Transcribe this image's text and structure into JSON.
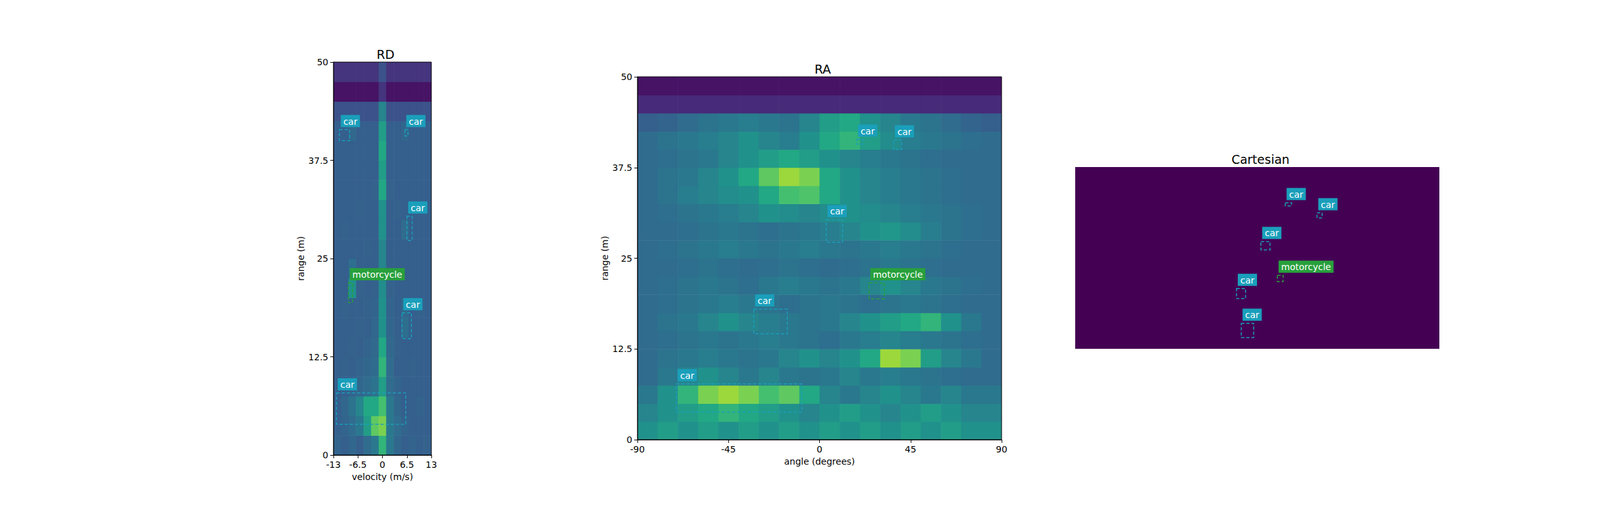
{
  "chart_data": [
    {
      "type": "heatmap",
      "title": "RD",
      "xlabel": "velocity (m/s)",
      "ylabel": "range (m)",
      "xlim": [
        -13,
        13
      ],
      "xticks": [
        -13,
        -6.5,
        0,
        6.5,
        13
      ],
      "ylim": [
        0,
        50
      ],
      "yticks": [
        0,
        12.5,
        25,
        37.5,
        50
      ],
      "value_range": [
        0,
        1
      ],
      "cell_x": [
        -12,
        -10,
        -8,
        -6,
        -4,
        -2,
        0,
        2,
        4,
        6,
        8,
        10,
        12
      ],
      "cell_y": [
        1.25,
        3.75,
        6.25,
        8.75,
        11.25,
        13.75,
        16.25,
        18.75,
        21.25,
        23.75,
        26.25,
        28.75,
        31.25,
        33.75,
        36.25,
        38.75,
        41.25,
        43.75,
        46.25,
        48.75
      ],
      "cells": [
        [
          0.32,
          0.3,
          0.33,
          0.3,
          0.35,
          0.4,
          0.65,
          0.4,
          0.33,
          0.3,
          0.32,
          0.3,
          0.31
        ],
        [
          0.3,
          0.32,
          0.35,
          0.4,
          0.55,
          0.75,
          0.8,
          0.4,
          0.35,
          0.32,
          0.3,
          0.3,
          0.3
        ],
        [
          0.3,
          0.33,
          0.38,
          0.45,
          0.6,
          0.6,
          0.7,
          0.4,
          0.33,
          0.3,
          0.3,
          0.32,
          0.3
        ],
        [
          0.3,
          0.3,
          0.32,
          0.33,
          0.35,
          0.38,
          0.55,
          0.35,
          0.32,
          0.3,
          0.3,
          0.3,
          0.3
        ],
        [
          0.3,
          0.31,
          0.3,
          0.32,
          0.33,
          0.35,
          0.65,
          0.35,
          0.3,
          0.3,
          0.31,
          0.3,
          0.3
        ],
        [
          0.3,
          0.3,
          0.31,
          0.3,
          0.32,
          0.34,
          0.6,
          0.34,
          0.31,
          0.3,
          0.3,
          0.3,
          0.3
        ],
        [
          0.3,
          0.3,
          0.3,
          0.31,
          0.3,
          0.33,
          0.5,
          0.33,
          0.3,
          0.36,
          0.3,
          0.3,
          0.3
        ],
        [
          0.3,
          0.31,
          0.3,
          0.3,
          0.31,
          0.32,
          0.5,
          0.32,
          0.3,
          0.34,
          0.3,
          0.31,
          0.3
        ],
        [
          0.3,
          0.3,
          0.5,
          0.31,
          0.3,
          0.31,
          0.48,
          0.31,
          0.3,
          0.3,
          0.3,
          0.3,
          0.3
        ],
        [
          0.3,
          0.3,
          0.36,
          0.3,
          0.3,
          0.3,
          0.45,
          0.3,
          0.3,
          0.3,
          0.3,
          0.3,
          0.3
        ],
        [
          0.3,
          0.3,
          0.3,
          0.3,
          0.31,
          0.3,
          0.45,
          0.3,
          0.3,
          0.3,
          0.3,
          0.3,
          0.3
        ],
        [
          0.3,
          0.31,
          0.3,
          0.3,
          0.3,
          0.3,
          0.5,
          0.3,
          0.3,
          0.35,
          0.3,
          0.3,
          0.3
        ],
        [
          0.3,
          0.3,
          0.3,
          0.31,
          0.3,
          0.3,
          0.5,
          0.3,
          0.31,
          0.3,
          0.3,
          0.3,
          0.3
        ],
        [
          0.3,
          0.3,
          0.3,
          0.3,
          0.3,
          0.31,
          0.6,
          0.31,
          0.3,
          0.3,
          0.3,
          0.3,
          0.3
        ],
        [
          0.3,
          0.3,
          0.3,
          0.3,
          0.3,
          0.3,
          0.55,
          0.3,
          0.3,
          0.3,
          0.3,
          0.3,
          0.3
        ],
        [
          0.3,
          0.3,
          0.3,
          0.3,
          0.3,
          0.3,
          0.6,
          0.3,
          0.3,
          0.3,
          0.3,
          0.3,
          0.3
        ],
        [
          0.3,
          0.3,
          0.34,
          0.3,
          0.3,
          0.3,
          0.55,
          0.3,
          0.3,
          0.33,
          0.3,
          0.3,
          0.3
        ],
        [
          0.25,
          0.25,
          0.25,
          0.25,
          0.25,
          0.25,
          0.45,
          0.25,
          0.25,
          0.25,
          0.25,
          0.25,
          0.25
        ],
        [
          0.05,
          0.05,
          0.05,
          0.05,
          0.05,
          0.05,
          0.15,
          0.05,
          0.05,
          0.05,
          0.05,
          0.05,
          0.05
        ],
        [
          0.15,
          0.15,
          0.15,
          0.15,
          0.15,
          0.15,
          0.25,
          0.15,
          0.15,
          0.15,
          0.15,
          0.15,
          0.15
        ]
      ],
      "boxes": [
        {
          "label": "car",
          "x": [
            -11.4,
            -8.7
          ],
          "y": [
            40.0,
            41.4
          ],
          "color": "#1a9fbb"
        },
        {
          "label": "car",
          "x": [
            6.0,
            6.8
          ],
          "y": [
            40.6,
            41.4
          ],
          "color": "#1a9fbb"
        },
        {
          "label": "car",
          "x": [
            6.5,
            7.9
          ],
          "y": [
            27.3,
            30.4
          ],
          "color": "#1a9fbb"
        },
        {
          "label": "motorcycle",
          "x": [
            -9.0,
            -7.9
          ],
          "y": [
            19.4,
            21.9
          ],
          "color": "#28a03c"
        },
        {
          "label": "car",
          "x": [
            5.2,
            7.7
          ],
          "y": [
            14.8,
            18.1
          ],
          "color": "#1a9fbb"
        },
        {
          "label": "car",
          "x": [
            -12.2,
            6.2
          ],
          "y": [
            3.9,
            7.9
          ],
          "color": "#1a9fbb"
        }
      ]
    },
    {
      "type": "heatmap",
      "title": "RA",
      "xlabel": "angle (degrees)",
      "ylabel": "range (m)",
      "xlim": [
        -90,
        90
      ],
      "xticks": [
        -90,
        -45,
        0,
        45,
        90
      ],
      "ylim": [
        0,
        50
      ],
      "yticks": [
        0,
        12.5,
        25,
        37.5,
        50
      ],
      "value_range": [
        0,
        1
      ],
      "cell_x": [
        -85,
        -75,
        -65,
        -55,
        -45,
        -35,
        -25,
        -15,
        -5,
        5,
        15,
        25,
        35,
        45,
        55,
        65,
        75,
        85
      ],
      "cell_y": [
        1.25,
        3.75,
        6.25,
        8.75,
        11.25,
        13.75,
        16.25,
        18.75,
        21.25,
        23.75,
        26.25,
        28.75,
        31.25,
        33.75,
        36.25,
        38.75,
        41.25,
        43.75,
        46.25,
        48.75
      ],
      "cells": [
        [
          0.5,
          0.55,
          0.5,
          0.55,
          0.5,
          0.55,
          0.5,
          0.55,
          0.5,
          0.55,
          0.5,
          0.55,
          0.5,
          0.55,
          0.5,
          0.55,
          0.5,
          0.5
        ],
        [
          0.45,
          0.5,
          0.55,
          0.6,
          0.65,
          0.6,
          0.55,
          0.5,
          0.45,
          0.5,
          0.55,
          0.5,
          0.45,
          0.5,
          0.55,
          0.5,
          0.45,
          0.45
        ],
        [
          0.4,
          0.5,
          0.65,
          0.8,
          0.85,
          0.8,
          0.7,
          0.75,
          0.6,
          0.45,
          0.4,
          0.45,
          0.5,
          0.45,
          0.4,
          0.45,
          0.4,
          0.4
        ],
        [
          0.35,
          0.4,
          0.45,
          0.5,
          0.45,
          0.4,
          0.45,
          0.4,
          0.38,
          0.4,
          0.45,
          0.4,
          0.42,
          0.4,
          0.38,
          0.36,
          0.35,
          0.35
        ],
        [
          0.35,
          0.38,
          0.4,
          0.42,
          0.4,
          0.38,
          0.4,
          0.45,
          0.5,
          0.45,
          0.5,
          0.6,
          0.85,
          0.8,
          0.55,
          0.45,
          0.4,
          0.35
        ],
        [
          0.35,
          0.36,
          0.38,
          0.4,
          0.38,
          0.4,
          0.42,
          0.4,
          0.38,
          0.36,
          0.4,
          0.42,
          0.45,
          0.42,
          0.4,
          0.38,
          0.36,
          0.35
        ],
        [
          0.35,
          0.38,
          0.4,
          0.45,
          0.5,
          0.45,
          0.42,
          0.4,
          0.38,
          0.4,
          0.45,
          0.5,
          0.55,
          0.6,
          0.65,
          0.5,
          0.4,
          0.35
        ],
        [
          0.35,
          0.36,
          0.38,
          0.4,
          0.42,
          0.4,
          0.38,
          0.36,
          0.38,
          0.4,
          0.38,
          0.36,
          0.38,
          0.4,
          0.38,
          0.36,
          0.35,
          0.35
        ],
        [
          0.35,
          0.36,
          0.38,
          0.4,
          0.38,
          0.36,
          0.4,
          0.42,
          0.4,
          0.38,
          0.4,
          0.45,
          0.5,
          0.45,
          0.4,
          0.38,
          0.36,
          0.35
        ],
        [
          0.35,
          0.35,
          0.36,
          0.38,
          0.36,
          0.35,
          0.36,
          0.38,
          0.36,
          0.35,
          0.36,
          0.38,
          0.4,
          0.38,
          0.36,
          0.35,
          0.35,
          0.35
        ],
        [
          0.35,
          0.36,
          0.38,
          0.4,
          0.42,
          0.4,
          0.38,
          0.4,
          0.42,
          0.4,
          0.38,
          0.4,
          0.42,
          0.4,
          0.38,
          0.36,
          0.35,
          0.35
        ],
        [
          0.35,
          0.35,
          0.36,
          0.38,
          0.4,
          0.38,
          0.36,
          0.38,
          0.4,
          0.42,
          0.45,
          0.5,
          0.52,
          0.48,
          0.42,
          0.38,
          0.36,
          0.35
        ],
        [
          0.35,
          0.36,
          0.38,
          0.4,
          0.42,
          0.45,
          0.5,
          0.48,
          0.45,
          0.48,
          0.5,
          0.48,
          0.45,
          0.42,
          0.4,
          0.38,
          0.36,
          0.35
        ],
        [
          0.35,
          0.38,
          0.42,
          0.45,
          0.48,
          0.5,
          0.6,
          0.7,
          0.72,
          0.6,
          0.5,
          0.45,
          0.42,
          0.4,
          0.38,
          0.36,
          0.35,
          0.35
        ],
        [
          0.35,
          0.38,
          0.4,
          0.45,
          0.5,
          0.6,
          0.75,
          0.85,
          0.8,
          0.6,
          0.5,
          0.45,
          0.42,
          0.4,
          0.38,
          0.36,
          0.35,
          0.35
        ],
        [
          0.35,
          0.36,
          0.38,
          0.4,
          0.45,
          0.5,
          0.55,
          0.6,
          0.55,
          0.5,
          0.45,
          0.42,
          0.4,
          0.38,
          0.36,
          0.35,
          0.35,
          0.35
        ],
        [
          0.35,
          0.38,
          0.4,
          0.42,
          0.45,
          0.5,
          0.45,
          0.42,
          0.5,
          0.6,
          0.65,
          0.55,
          0.48,
          0.42,
          0.4,
          0.38,
          0.36,
          0.35
        ],
        [
          0.3,
          0.32,
          0.35,
          0.38,
          0.4,
          0.42,
          0.4,
          0.38,
          0.45,
          0.55,
          0.6,
          0.5,
          0.45,
          0.4,
          0.38,
          0.35,
          0.32,
          0.3
        ],
        [
          0.12,
          0.12,
          0.12,
          0.12,
          0.12,
          0.12,
          0.12,
          0.12,
          0.12,
          0.12,
          0.12,
          0.12,
          0.12,
          0.12,
          0.12,
          0.12,
          0.12,
          0.12
        ],
        [
          0.05,
          0.05,
          0.05,
          0.05,
          0.05,
          0.05,
          0.05,
          0.05,
          0.05,
          0.05,
          0.05,
          0.05,
          0.05,
          0.05,
          0.05,
          0.05,
          0.05,
          0.05
        ]
      ],
      "boxes": [
        {
          "label": "car",
          "x": [
            18.4,
            21.4
          ],
          "y": [
            40.7,
            41.4
          ],
          "color": "#1a9fbb"
        },
        {
          "label": "car",
          "x": [
            36.6,
            40.6
          ],
          "y": [
            40.0,
            41.3
          ],
          "color": "#1a9fbb"
        },
        {
          "label": "car",
          "x": [
            3.3,
            11.4
          ],
          "y": [
            27.2,
            30.3
          ],
          "color": "#1a9fbb"
        },
        {
          "label": "motorcycle",
          "x": [
            24.5,
            32.0
          ],
          "y": [
            19.4,
            21.6
          ],
          "color": "#28a03c"
        },
        {
          "label": "car",
          "x": [
            -32.5,
            -15.9
          ],
          "y": [
            14.6,
            18.0
          ],
          "color": "#1a9fbb"
        },
        {
          "label": "car",
          "x": [
            -70.8,
            -8.8
          ],
          "y": [
            3.8,
            7.7
          ],
          "color": "#1a9fbb"
        }
      ]
    },
    {
      "type": "boxes",
      "title": "Cartesian",
      "tick_labels": false,
      "xlim": [
        -50,
        50
      ],
      "ylim": [
        0,
        50
      ],
      "boxes": [
        {
          "label": "car",
          "x": [
            7.7,
            9.4
          ],
          "y": [
            39.3,
            40.2
          ],
          "color": "#1a9fbb"
        },
        {
          "label": "car",
          "x": [
            16.4,
            17.8
          ],
          "y": [
            36.0,
            37.4
          ],
          "color": "#1a9fbb"
        },
        {
          "label": "car",
          "x": [
            1.0,
            3.5
          ],
          "y": [
            27.2,
            29.5
          ],
          "color": "#1a9fbb"
        },
        {
          "label": "motorcycle",
          "x": [
            5.5,
            7.1
          ],
          "y": [
            18.5,
            20.2
          ],
          "color": "#28a03c"
        },
        {
          "label": "car",
          "x": [
            -5.7,
            -3.2
          ],
          "y": [
            13.8,
            16.6
          ],
          "color": "#1a9fbb"
        },
        {
          "label": "car",
          "x": [
            -4.4,
            -1.0
          ],
          "y": [
            3.1,
            7.0
          ],
          "color": "#1a9fbb"
        }
      ]
    }
  ]
}
